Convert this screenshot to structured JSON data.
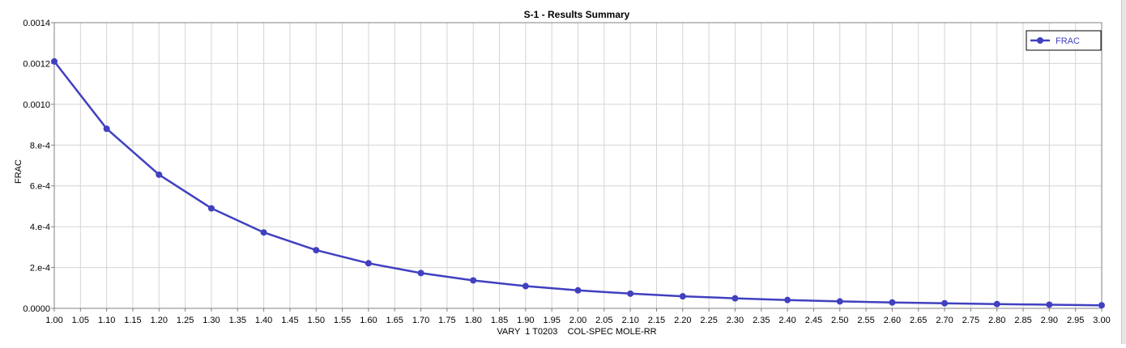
{
  "chart_data": {
    "type": "line",
    "title": "S-1 - Results Summary",
    "xlabel": "VARY  1 T0203    COL-SPEC MOLE-RR",
    "ylabel": "FRAC",
    "xlim": [
      1.0,
      3.0
    ],
    "ylim": [
      0,
      0.0014
    ],
    "grid": true,
    "legend_position": "top-right",
    "x_ticks": [
      "1.00",
      "1.05",
      "1.10",
      "1.15",
      "1.20",
      "1.25",
      "1.30",
      "1.35",
      "1.40",
      "1.45",
      "1.50",
      "1.55",
      "1.60",
      "1.65",
      "1.70",
      "1.75",
      "1.80",
      "1.85",
      "1.90",
      "1.95",
      "2.00",
      "2.05",
      "2.10",
      "2.15",
      "2.20",
      "2.25",
      "2.30",
      "2.35",
      "2.40",
      "2.45",
      "2.50",
      "2.55",
      "2.60",
      "2.65",
      "2.70",
      "2.75",
      "2.80",
      "2.85",
      "2.90",
      "2.95",
      "3.00"
    ],
    "y_ticks": [
      {
        "value": 0.0,
        "label": "0.0000"
      },
      {
        "value": 0.0002,
        "label": "2.e-4"
      },
      {
        "value": 0.0004,
        "label": "4.e-4"
      },
      {
        "value": 0.0006,
        "label": "6.e-4"
      },
      {
        "value": 0.0008,
        "label": "8.e-4"
      },
      {
        "value": 0.001,
        "label": "0.0010"
      },
      {
        "value": 0.0012,
        "label": "0.0012"
      },
      {
        "value": 0.0014,
        "label": "0.0014"
      }
    ],
    "series": [
      {
        "name": "FRAC",
        "color": "#4040c0",
        "x": [
          1.0,
          1.1,
          1.2,
          1.3,
          1.4,
          1.5,
          1.6,
          1.7,
          1.8,
          1.9,
          2.0,
          2.1,
          2.2,
          2.3,
          2.4,
          2.5,
          2.6,
          2.7,
          2.8,
          2.9,
          3.0
        ],
        "y": [
          0.00121,
          0.00088,
          0.000655,
          0.00049,
          0.000372,
          0.000285,
          0.000221,
          0.000173,
          0.000137,
          0.000109,
          8.8e-05,
          7.2e-05,
          5.9e-05,
          4.9e-05,
          4.1e-05,
          3.4e-05,
          2.9e-05,
          2.5e-05,
          2.1e-05,
          1.8e-05,
          1.5e-05
        ]
      }
    ]
  }
}
